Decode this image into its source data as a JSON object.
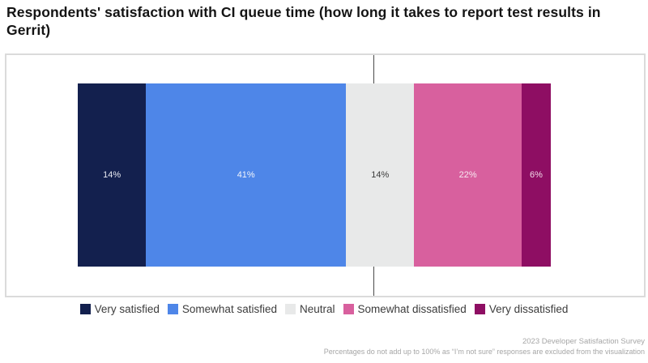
{
  "title": "Respondents' satisfaction with CI queue time (how long it takes to report test results in Gerrit)",
  "chart_data": {
    "type": "bar",
    "variant": "horizontal-stacked-diverging",
    "title": "Respondents' satisfaction with CI queue time (how long it takes to report test results in Gerrit)",
    "categories": [
      "Very satisfied",
      "Somewhat satisfied",
      "Neutral",
      "Somewhat dissatisfied",
      "Very dissatisfied"
    ],
    "values": [
      14,
      41,
      14,
      22,
      6
    ],
    "value_labels": [
      "14%",
      "41%",
      "14%",
      "22%",
      "6%"
    ],
    "colors": [
      "#13204e",
      "#4e86e8",
      "#e8e9e9",
      "#d8609e",
      "#8e0e63"
    ],
    "label_colors": [
      "#e8eaf2",
      "#f2f5fb",
      "#3a3a3a",
      "#f7e8f1",
      "#f3dcea"
    ],
    "total_shown_percent": 97,
    "center_line": "diverging reference line at neutral midpoint",
    "legend_position": "bottom",
    "grid": false
  },
  "legend": {
    "items": [
      "Very satisfied",
      "Somewhat satisfied",
      "Neutral",
      "Somewhat dissatisfied",
      "Very dissatisfied"
    ]
  },
  "footer": {
    "line1": "2023 Developer Satisfaction Survey",
    "line2": "Percentages do not add up to 100% as “I’m not sure” responses are excluded from the visualization"
  }
}
